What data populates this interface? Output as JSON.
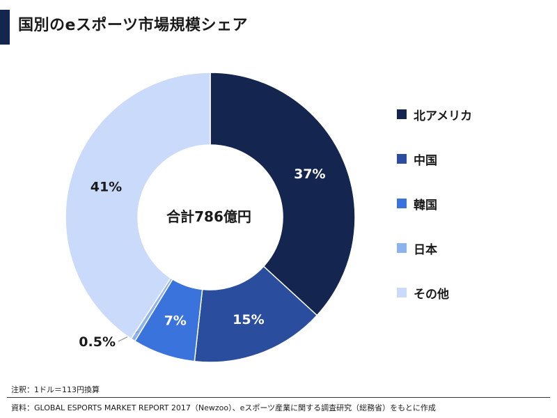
{
  "title": "国別のeスポーツ市場規模シェア",
  "chart_data": {
    "type": "pie",
    "donut": true,
    "center_label": "合計786億円",
    "slices": [
      {
        "name": "北アメリカ",
        "value": 37,
        "label": "37%",
        "color": "#14264f"
      },
      {
        "name": "中国",
        "value": 15,
        "label": "15%",
        "color": "#2a4d9e"
      },
      {
        "name": "韓国",
        "value": 7,
        "label": "7%",
        "color": "#3a73db"
      },
      {
        "name": "日本",
        "value": 0.5,
        "label": "0.5%",
        "color": "#8db3ef"
      },
      {
        "name": "その他",
        "value": 41,
        "label": "41%",
        "color": "#c9dafa"
      }
    ],
    "legend_placement": "right"
  },
  "footer": {
    "note": "注釈：1ドル＝113円換算",
    "source": "資料：GLOBAL ESPORTS MARKET REPORT 2017（Newzoo）、eスポーツ産業に関する調査研究（総務省）をもとに作成"
  }
}
